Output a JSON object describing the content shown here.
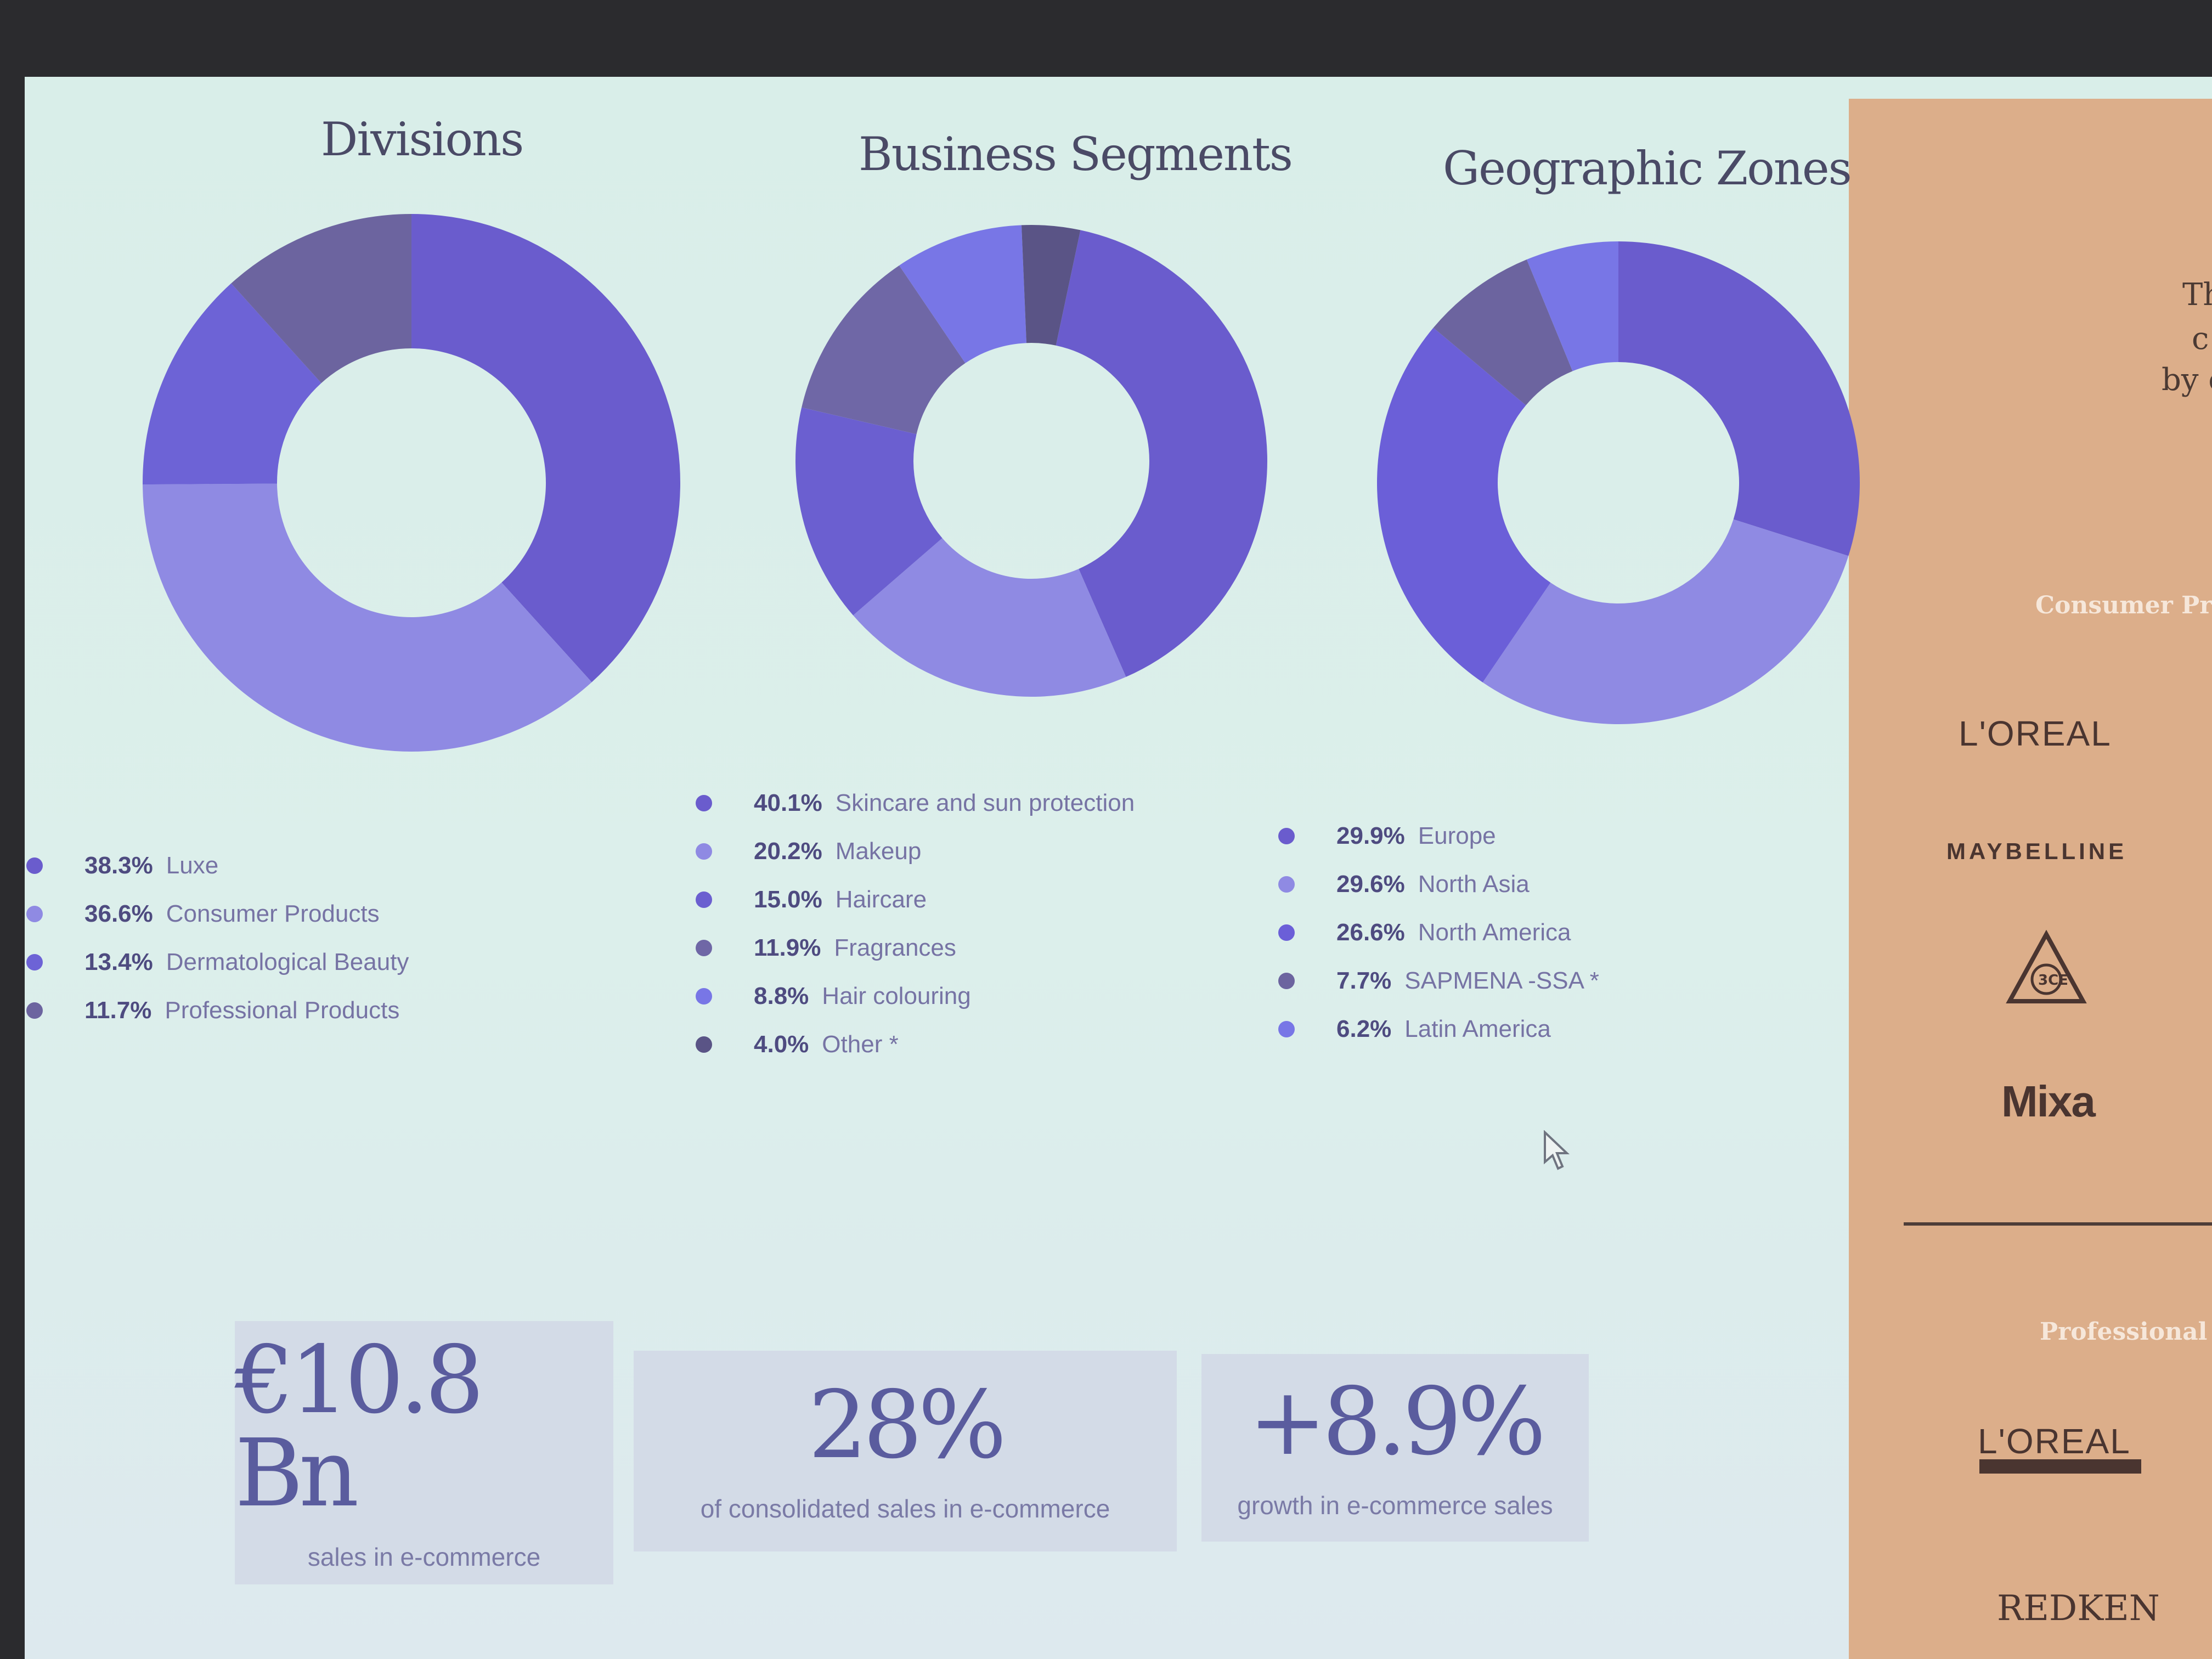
{
  "chart_data": [
    {
      "type": "pie",
      "title": "Divisions",
      "slices": [
        {
          "label": "Luxe",
          "value_text": "38.3%",
          "value": 38.3,
          "color": "#6a5ccd"
        },
        {
          "label": "Consumer Products",
          "value_text": "36.6%",
          "value": 36.6,
          "color": "#8f8ae3"
        },
        {
          "label": "Dermatological Beauty",
          "value_text": "13.4%",
          "value": 13.4,
          "color": "#6d63d6"
        },
        {
          "label": "Professional Products",
          "value_text": "11.7%",
          "value": 11.7,
          "color": "#6c649f"
        }
      ]
    },
    {
      "type": "pie",
      "title": "Business Segments",
      "slices": [
        {
          "label": "Skincare and sun protection",
          "value_text": "40.1%",
          "value": 40.1,
          "color": "#6a5ccd"
        },
        {
          "label": "Makeup",
          "value_text": "20.2%",
          "value": 20.2,
          "color": "#8f8ae3"
        },
        {
          "label": "Haircare",
          "value_text": "15.0%",
          "value": 15.0,
          "color": "#6b5fd0"
        },
        {
          "label": "Fragrances",
          "value_text": "11.9%",
          "value": 11.9,
          "color": "#6f67a6"
        },
        {
          "label": "Hair colouring",
          "value_text": "8.8%",
          "value": 8.8,
          "color": "#7876e6"
        },
        {
          "label": "Other *",
          "value_text": "4.0%",
          "value": 4.0,
          "color": "#5a5486"
        }
      ]
    },
    {
      "type": "pie",
      "title": "Geographic Zones",
      "slices": [
        {
          "label": "Europe",
          "value_text": "29.9%",
          "value": 29.9,
          "color": "#6a5ccd"
        },
        {
          "label": "North Asia",
          "value_text": "29.6%",
          "value": 29.6,
          "color": "#8f8ae3"
        },
        {
          "label": "North America",
          "value_text": "26.6%",
          "value": 26.6,
          "color": "#6b5fd8"
        },
        {
          "label": "SAPMENA -SSA *",
          "value_text": "7.7%",
          "value": 7.7,
          "color": "#6c649f"
        },
        {
          "label": "Latin America",
          "value_text": "6.2%",
          "value": 6.2,
          "color": "#7876e6"
        }
      ]
    }
  ],
  "stats": [
    {
      "value": "€10.8 Bn",
      "label": "sales in e-commerce"
    },
    {
      "value": "28%",
      "label": "of consolidated sales in e-commerce"
    },
    {
      "value": "+8.9%",
      "label": "growth in e-commerce sales"
    }
  ],
  "side_panel": {
    "text_fragments": [
      "Th",
      "c",
      "by c"
    ],
    "consumer_heading": "Consumer Pr",
    "professional_heading": "Professional",
    "brands": [
      "L'OREAL",
      "MAYBELLINE",
      "3CE",
      "Mixa",
      "L'OREAL",
      "REDKEN"
    ]
  }
}
